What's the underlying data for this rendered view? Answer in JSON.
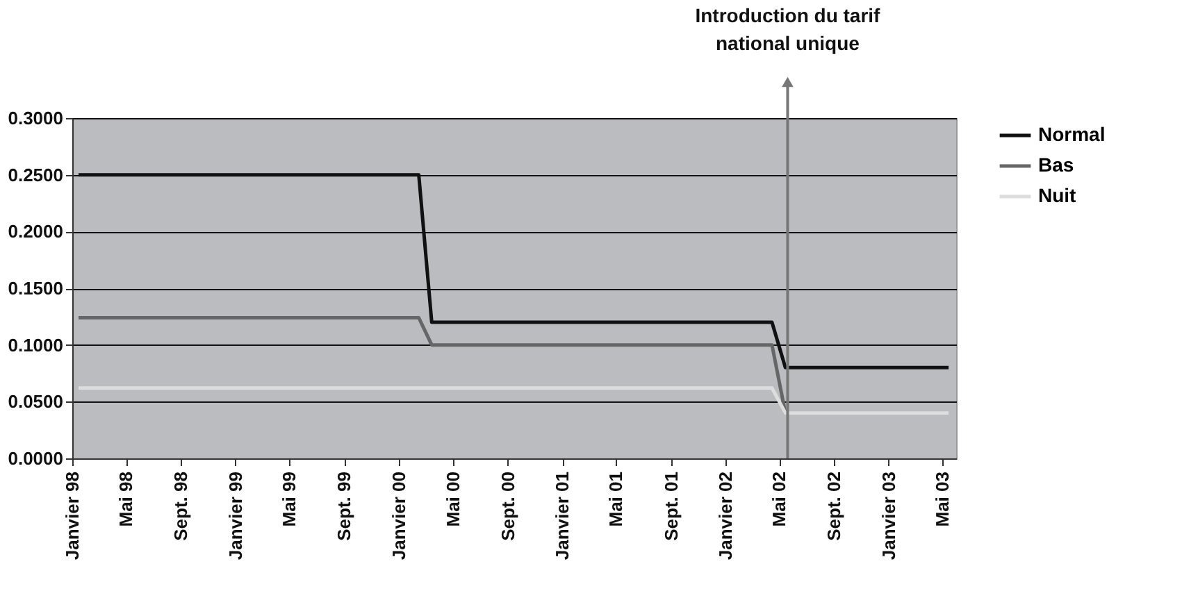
{
  "chart_data": {
    "type": "line",
    "xlim": [
      "1998-01",
      "2003-06"
    ],
    "xticks": [
      {
        "value": "1998-01",
        "label": "Janvier 98"
      },
      {
        "value": "1998-05",
        "label": "Mai 98"
      },
      {
        "value": "1998-09",
        "label": "Sept. 98"
      },
      {
        "value": "1999-01",
        "label": "Janvier 99"
      },
      {
        "value": "1999-05",
        "label": "Mai 99"
      },
      {
        "value": "1999-09",
        "label": "Sept. 99"
      },
      {
        "value": "2000-01",
        "label": "Janvier 00"
      },
      {
        "value": "2000-05",
        "label": "Mai 00"
      },
      {
        "value": "2000-09",
        "label": "Sept. 00"
      },
      {
        "value": "2001-01",
        "label": "Janvier 01"
      },
      {
        "value": "2001-05",
        "label": "Mai 01"
      },
      {
        "value": "2001-09",
        "label": "Sept. 01"
      },
      {
        "value": "2002-01",
        "label": "Janvier 02"
      },
      {
        "value": "2002-05",
        "label": "Mai 02"
      },
      {
        "value": "2002-09",
        "label": "Sept. 02"
      },
      {
        "value": "2003-01",
        "label": "Janvier 03"
      },
      {
        "value": "2003-05",
        "label": "Mai 03"
      }
    ],
    "ylim": [
      0,
      0.3
    ],
    "yticks": [
      {
        "value": 0,
        "label": "0.0000"
      },
      {
        "value": 0.05,
        "label": "0.0500"
      },
      {
        "value": 0.1,
        "label": "0.1000"
      },
      {
        "value": 0.15,
        "label": "0.1500"
      },
      {
        "value": 0.2,
        "label": "0.2000"
      },
      {
        "value": 0.25,
        "label": "0.2500"
      },
      {
        "value": 0.3,
        "label": "0.3000"
      }
    ],
    "grid": "y",
    "legend": "right",
    "series": [
      {
        "name": "Normal",
        "color": "#111111",
        "x": [
          "1998-01-15",
          "2000-02-15",
          "2000-03-15",
          "2002-04-15",
          "2002-05-15",
          "2003-05-15"
        ],
        "values": [
          0.25,
          0.25,
          0.12,
          0.12,
          0.08,
          0.08
        ]
      },
      {
        "name": "Bas",
        "color": "#666666",
        "x": [
          "1998-01-15",
          "2000-02-15",
          "2000-03-15",
          "2002-04-15",
          "2002-05-15"
        ],
        "values": [
          0.124,
          0.124,
          0.1,
          0.1,
          0.04
        ]
      },
      {
        "name": "Nuit",
        "color": "#dddddd",
        "x": [
          "1998-01-15",
          "2002-04-15",
          "2002-05-15",
          "2003-05-15"
        ],
        "values": [
          0.062,
          0.062,
          0.04,
          0.04
        ]
      }
    ],
    "ref_lines": [
      {
        "axis": "x",
        "value": "2002-05-20",
        "label": "Introduction du tarif\nnational unique",
        "color": "#777777"
      }
    ]
  }
}
